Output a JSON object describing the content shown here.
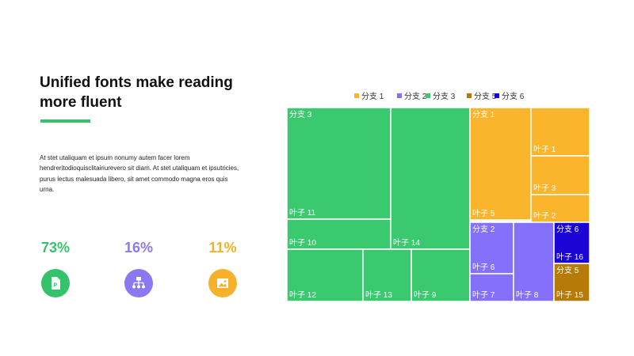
{
  "slide": {
    "title_lines": [
      "Unified fonts make reading",
      "more fluent"
    ],
    "body": "At stet utaliquam  et ipsum nonumy  autem facer lorem hendreritodioquisclitairiurevero  sit diam.  At stet utaliquam  et ipsutricies,  purus lectus malesuada libero, sit amet commodo magna eros quis urna.",
    "accent_color": "#36c26a"
  },
  "stats": [
    {
      "value": "73%",
      "color": "#36c26a",
      "icon": "document-icon"
    },
    {
      "value": "16%",
      "color": "#8c78f0",
      "icon": "org-chart-icon"
    },
    {
      "value": "11%",
      "color": "#f5b12b",
      "icon": "image-icon"
    }
  ],
  "chart_data": {
    "type": "treemap",
    "title": "",
    "legend_position": "top",
    "branches": [
      {
        "name": "分支 1",
        "color": "#fbb52c"
      },
      {
        "name": "分支 2",
        "color": "#8470fa"
      },
      {
        "name": "分支 3",
        "color": "#3ac96e"
      },
      {
        "name": "分支 5",
        "color": "#b57a07"
      },
      {
        "name": "分支 6",
        "color": "#1b04d6"
      }
    ],
    "legend": [
      "分支 1",
      "分支 2",
      "分支 3",
      "分支 5",
      "分支 6"
    ],
    "leaves": [
      {
        "name": "叶子 11",
        "branch": "分支 3",
        "value": 20
      },
      {
        "name": "叶子 14",
        "branch": "分支 3",
        "value": 23
      },
      {
        "name": "叶子 10",
        "branch": "分支 3",
        "value": 7
      },
      {
        "name": "叶子 12",
        "branch": "分支 3",
        "value": 9.5
      },
      {
        "name": "叶子 13",
        "branch": "分支 3",
        "value": 6
      },
      {
        "name": "叶子 9",
        "branch": "分支 3",
        "value": 7.4
      },
      {
        "name": "叶子 5",
        "branch": "分支 1",
        "value": 10.8
      },
      {
        "name": "叶子 1",
        "branch": "分支 1",
        "value": 4.5
      },
      {
        "name": "叶子 3",
        "branch": "分支 1",
        "value": 3.6
      },
      {
        "name": "叶子 2",
        "branch": "分支 1",
        "value": 2.6
      },
      {
        "name": "叶子 6",
        "branch": "分支 2",
        "value": 4.0
      },
      {
        "name": "叶子 7",
        "branch": "分支 2",
        "value": 2.0
      },
      {
        "name": "叶子 8",
        "branch": "分支 2",
        "value": 5.5
      },
      {
        "name": "叶子 16",
        "branch": "分支 6",
        "value": 3.0
      },
      {
        "name": "叶子 15",
        "branch": "分支 5",
        "value": 2.8
      }
    ]
  }
}
